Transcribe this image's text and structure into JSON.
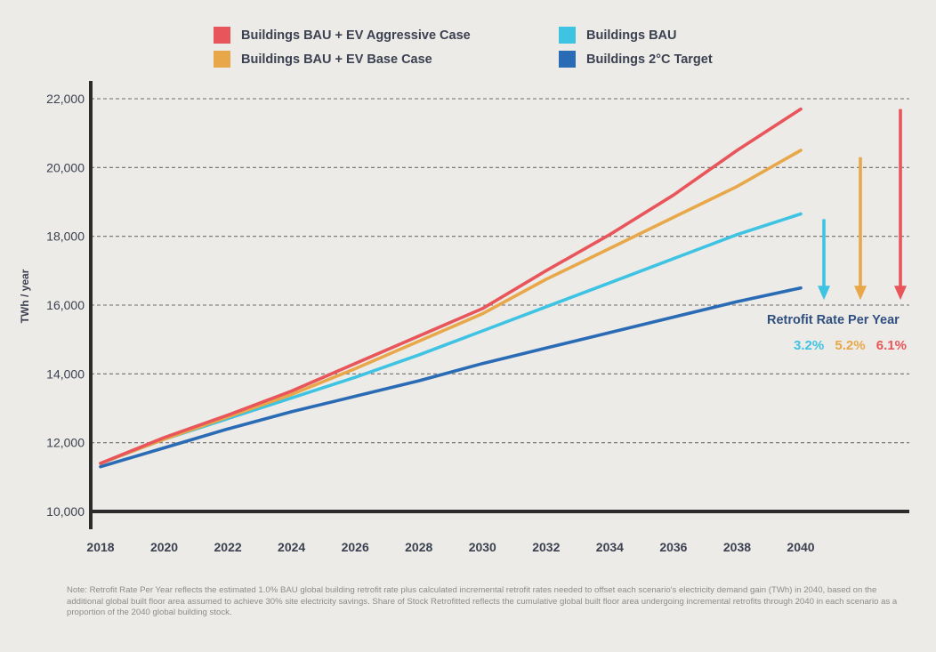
{
  "chart_data": {
    "type": "line",
    "title": "",
    "xlabel": "",
    "ylabel": "TWh / year",
    "xlim": [
      2018,
      2040
    ],
    "ylim": [
      10000,
      22000
    ],
    "x_ticks": [
      "2018",
      "2020",
      "2022",
      "2024",
      "2026",
      "2028",
      "2030",
      "2032",
      "2034",
      "2036",
      "2038",
      "2040"
    ],
    "y_ticks": [
      "10,000",
      "12,000",
      "14,000",
      "16,000",
      "18,000",
      "20,000",
      "22,000"
    ],
    "grid": "horizontal dashed",
    "legend_position": "top",
    "series": [
      {
        "name": "Buildings BAU + EV Aggressive Case",
        "color": "#e8555a",
        "points": [
          [
            2018,
            11400
          ],
          [
            2020,
            12150
          ],
          [
            2022,
            12800
          ],
          [
            2024,
            13500
          ],
          [
            2026,
            14300
          ],
          [
            2028,
            15100
          ],
          [
            2030,
            15900
          ],
          [
            2032,
            17000
          ],
          [
            2034,
            18050
          ],
          [
            2036,
            19200
          ],
          [
            2038,
            20500
          ],
          [
            2040,
            21700
          ]
        ]
      },
      {
        "name": "Buildings BAU + EV Base Case",
        "color": "#e8a84a",
        "points": [
          [
            2018,
            11400
          ],
          [
            2020,
            12100
          ],
          [
            2022,
            12750
          ],
          [
            2024,
            13400
          ],
          [
            2026,
            14150
          ],
          [
            2028,
            14950
          ],
          [
            2030,
            15750
          ],
          [
            2032,
            16750
          ],
          [
            2034,
            17650
          ],
          [
            2036,
            18550
          ],
          [
            2038,
            19450
          ],
          [
            2040,
            20500
          ]
        ]
      },
      {
        "name": "Buildings BAU",
        "color": "#3ec3e3",
        "points": [
          [
            2018,
            11400
          ],
          [
            2020,
            12100
          ],
          [
            2022,
            12700
          ],
          [
            2024,
            13300
          ],
          [
            2026,
            13900
          ],
          [
            2028,
            14550
          ],
          [
            2030,
            15250
          ],
          [
            2032,
            15950
          ],
          [
            2034,
            16650
          ],
          [
            2036,
            17350
          ],
          [
            2038,
            18050
          ],
          [
            2040,
            18650
          ]
        ]
      },
      {
        "name": "Buildings 2°C Target",
        "color": "#2a6bb5",
        "points": [
          [
            2018,
            11300
          ],
          [
            2020,
            11850
          ],
          [
            2022,
            12400
          ],
          [
            2024,
            12900
          ],
          [
            2026,
            13350
          ],
          [
            2028,
            13800
          ],
          [
            2030,
            14300
          ],
          [
            2032,
            14750
          ],
          [
            2034,
            15200
          ],
          [
            2036,
            15650
          ],
          [
            2038,
            16100
          ],
          [
            2040,
            16500
          ]
        ]
      }
    ],
    "reduction_arrows": [
      {
        "series": "Buildings BAU",
        "from": 18500,
        "to": 16200,
        "color": "#3ec3e3"
      },
      {
        "series": "Buildings BAU + EV Base Case",
        "from": 20300,
        "to": 16200,
        "color": "#e8a84a"
      },
      {
        "series": "Buildings BAU + EV Aggressive Case",
        "from": 21700,
        "to": 16200,
        "color": "#e8555a"
      }
    ],
    "annotations": {
      "retrofit_title": "Retrofit Rate Per Year",
      "retrofit_rates": [
        {
          "value": "3.2%",
          "color": "#3ec3e3"
        },
        {
          "value": "5.2%",
          "color": "#e8a84a"
        },
        {
          "value": "6.1%",
          "color": "#e8555a"
        }
      ]
    },
    "note": "Note: Retrofit Rate Per Year reflects the estimated 1.0% BAU global building retrofit rate plus calculated incremental retrofit rates needed to offset each scenario's electricity demand gain (TWh) in 2040, based on the additional global built floor area assumed to achieve 30% site electricity savings. Share of Stock Retrofitted reflects the cumulative global built floor area undergoing incremental retrofits through 2040 in each scenario as a proportion of the 2040 global building stock."
  }
}
